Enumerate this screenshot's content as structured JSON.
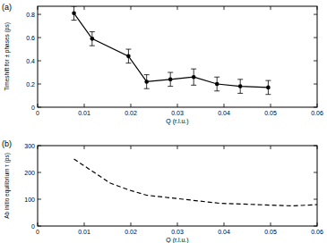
{
  "chart_data": [
    {
      "type": "line",
      "title": "(a)",
      "x_label": "Q (r.l.u.)",
      "y_label": "Timeshift for ± phases (ps)",
      "x": [
        0.0078,
        0.0117,
        0.0195,
        0.0234,
        0.0285,
        0.0335,
        0.0385,
        0.0435,
        0.0495
      ],
      "series": [
        {
          "name": "Timeshift",
          "color": "#000000",
          "marker": "circle",
          "line_style": "solid",
          "values": [
            0.81,
            0.59,
            0.44,
            0.22,
            0.24,
            0.26,
            0.2,
            0.18,
            0.17
          ],
          "errors": [
            0.06,
            0.06,
            0.06,
            0.06,
            0.06,
            0.07,
            0.06,
            0.06,
            0.06
          ]
        }
      ],
      "xlim": [
        0,
        0.06
      ],
      "xticks": [
        0,
        0.01,
        0.02,
        0.03,
        0.04,
        0.05,
        0.06
      ],
      "ylim": [
        0,
        0.87
      ],
      "yticks": [
        0,
        0.2,
        0.4,
        0.6,
        0.8
      ]
    },
    {
      "type": "line",
      "title": "(b)",
      "x_label": "Q (r.l.u.)",
      "y_label": "Ab initio equilibrium τ (ps)",
      "x": [
        0.0078,
        0.0117,
        0.0156,
        0.0195,
        0.0234,
        0.0312,
        0.039,
        0.047,
        0.0547,
        0.06
      ],
      "series": [
        {
          "name": "Ab initio",
          "color": "#000000",
          "marker": "none",
          "line_style": "dashed",
          "values": [
            250,
            205,
            160,
            135,
            115,
            100,
            85,
            80,
            75,
            80
          ]
        }
      ],
      "xlim": [
        0,
        0.06
      ],
      "xticks": [
        0,
        0.01,
        0.02,
        0.03,
        0.04,
        0.05,
        0.06
      ],
      "ylim": [
        0,
        300
      ],
      "yticks": [
        0,
        100,
        200,
        300
      ]
    }
  ]
}
